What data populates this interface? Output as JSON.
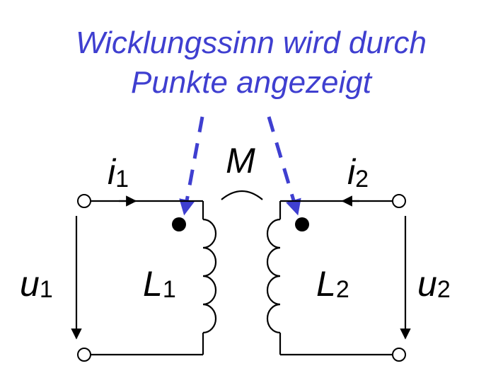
{
  "caption": {
    "line1": "Wicklungssinn wird durch",
    "line2": "Punkte angezeigt"
  },
  "labels": {
    "mutual": "M",
    "i1": {
      "base": "i",
      "sub": "1"
    },
    "i2": {
      "base": "i",
      "sub": "2"
    },
    "u1": {
      "base": "u",
      "sub": "1"
    },
    "u2": {
      "base": "u",
      "sub": "2"
    },
    "L1": {
      "base": "L",
      "sub": "1"
    },
    "L2": {
      "base": "L",
      "sub": "2"
    }
  },
  "colors": {
    "annotation": "#3f3fd0",
    "circuit": "#000000"
  }
}
